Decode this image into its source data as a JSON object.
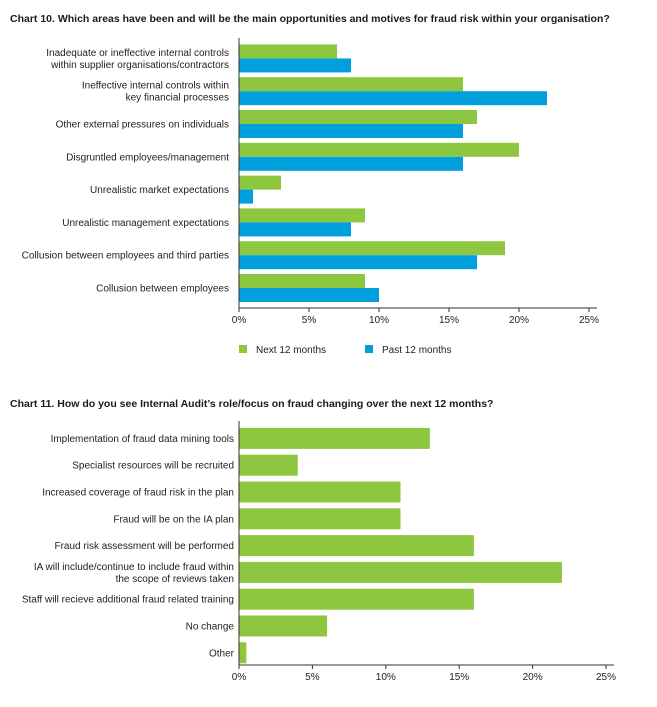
{
  "chart_data": [
    {
      "type": "bar",
      "orientation": "horizontal",
      "title": "Chart 10. Which areas have been and will be the main opportunities and motives for fraud risk within your organisation?",
      "categories": [
        [
          "Inadequate or ineffective internal controls",
          "within supplier organisations/contractors"
        ],
        [
          "Ineffective internal controls within",
          "key financial processes"
        ],
        [
          "Other external pressures on individuals"
        ],
        [
          "Disgruntled employees/management"
        ],
        [
          "Unrealistic market expectations"
        ],
        [
          "Unrealistic management expectations"
        ],
        [
          "Collusion between employees and third parties"
        ],
        [
          "Collusion between employees"
        ]
      ],
      "series": [
        {
          "name": "Next 12 months",
          "color": "#8dc63f",
          "values": [
            7,
            16,
            17,
            20,
            3,
            9,
            19,
            9
          ]
        },
        {
          "name": "Past 12 months",
          "color": "#00a0dc",
          "values": [
            8,
            22,
            16,
            16,
            1,
            8,
            17,
            10
          ]
        }
      ],
      "xlim": [
        0,
        25
      ],
      "ticks": [
        "0%",
        "5%",
        "10%",
        "15%",
        "20%",
        "25%"
      ],
      "tick_values": [
        0,
        5,
        10,
        15,
        20,
        25
      ],
      "grid": false,
      "legend": "bottom"
    },
    {
      "type": "bar",
      "orientation": "horizontal",
      "title": "Chart 11. How do you see Internal Audit’s role/focus on fraud changing over the next 12 months?",
      "categories": [
        [
          "Implementation of fraud data mining tools"
        ],
        [
          "Specialist resources will be recruited"
        ],
        [
          "Increased coverage of fraud risk in the plan"
        ],
        [
          "Fraud will be on the IA plan"
        ],
        [
          "Fraud risk assessment will be performed"
        ],
        [
          "IA will include/continue to include fraud within",
          "the scope of reviews taken"
        ],
        [
          "Staff will recieve additional fraud related training"
        ],
        [
          "No change"
        ],
        [
          "Other"
        ]
      ],
      "series": [
        {
          "color": "#8dc63f",
          "values": [
            13,
            4,
            11,
            11,
            16,
            22,
            16,
            6,
            0.5
          ]
        }
      ],
      "xlim": [
        0,
        25
      ],
      "ticks": [
        "0%",
        "5%",
        "10%",
        "15%",
        "20%",
        "25%"
      ],
      "tick_values": [
        0,
        5,
        10,
        15,
        20,
        25
      ],
      "grid": false,
      "legend": "none"
    }
  ]
}
